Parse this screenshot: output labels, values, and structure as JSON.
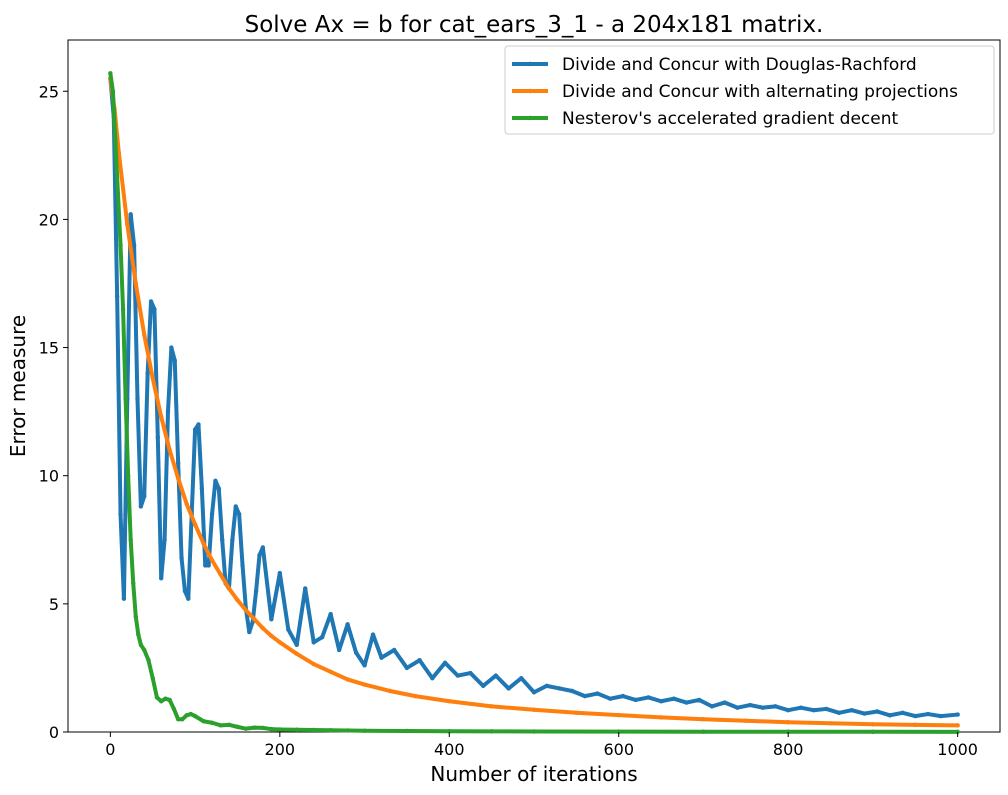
{
  "chart_data": {
    "type": "line",
    "title": "Solve Ax = b for cat_ears_3_1 - a 204x181 matrix.",
    "xlabel": "Number of iterations",
    "ylabel": "Error measure",
    "xlim": [
      -50,
      1050
    ],
    "ylim": [
      0,
      27
    ],
    "xticks": [
      0,
      200,
      400,
      600,
      800,
      1000
    ],
    "yticks": [
      0,
      5,
      10,
      15,
      20,
      25
    ],
    "grid": false,
    "legend_position": "top-right",
    "series": [
      {
        "name": "Divide and Concur with Douglas-Rachford",
        "color": "#1f77b4",
        "x": [
          0,
          4,
          8,
          12,
          16,
          20,
          24,
          28,
          32,
          36,
          40,
          44,
          48,
          52,
          56,
          60,
          64,
          68,
          72,
          76,
          80,
          84,
          88,
          92,
          96,
          100,
          104,
          108,
          112,
          116,
          120,
          124,
          128,
          132,
          136,
          140,
          144,
          148,
          152,
          156,
          160,
          164,
          168,
          172,
          176,
          180,
          190,
          200,
          210,
          220,
          230,
          240,
          250,
          260,
          270,
          280,
          290,
          300,
          310,
          320,
          335,
          350,
          365,
          380,
          395,
          410,
          425,
          440,
          455,
          470,
          485,
          500,
          515,
          530,
          545,
          560,
          575,
          590,
          605,
          620,
          635,
          650,
          665,
          680,
          695,
          710,
          725,
          740,
          755,
          770,
          785,
          800,
          815,
          830,
          845,
          860,
          875,
          890,
          905,
          920,
          935,
          950,
          965,
          980,
          1000
        ],
        "y": [
          25.5,
          24,
          17,
          8.5,
          5.2,
          13,
          20.2,
          19,
          13,
          8.8,
          9.2,
          14,
          16.8,
          16.5,
          11.5,
          6,
          7.5,
          12.5,
          15,
          14.5,
          10.5,
          6.8,
          5.5,
          5.2,
          8.5,
          11.8,
          12,
          9.5,
          6.5,
          6.5,
          8.5,
          9.8,
          9.5,
          7.5,
          5.8,
          5.6,
          7.5,
          8.8,
          8.5,
          6.5,
          4.8,
          3.9,
          4.3,
          5.5,
          6.9,
          7.2,
          4.4,
          6.2,
          4.0,
          3.4,
          5.6,
          3.5,
          3.7,
          4.6,
          3.2,
          4.2,
          3.1,
          2.6,
          3.8,
          2.9,
          3.2,
          2.5,
          2.8,
          2.1,
          2.7,
          2.2,
          2.3,
          1.8,
          2.2,
          1.7,
          2.1,
          1.55,
          1.8,
          1.7,
          1.6,
          1.4,
          1.5,
          1.3,
          1.4,
          1.25,
          1.35,
          1.2,
          1.3,
          1.15,
          1.25,
          1.0,
          1.15,
          0.95,
          1.05,
          0.95,
          1.0,
          0.85,
          0.95,
          0.85,
          0.9,
          0.75,
          0.85,
          0.72,
          0.8,
          0.65,
          0.75,
          0.62,
          0.7,
          0.62,
          0.68
        ]
      },
      {
        "name": "Divide and Concur with alternating projections",
        "color": "#ff7f0e",
        "x": [
          0,
          5,
          10,
          20,
          30,
          40,
          50,
          60,
          70,
          80,
          90,
          100,
          110,
          120,
          130,
          140,
          150,
          160,
          170,
          180,
          190,
          200,
          220,
          240,
          260,
          280,
          300,
          330,
          360,
          400,
          450,
          500,
          550,
          600,
          650,
          700,
          750,
          800,
          850,
          900,
          950,
          1000
        ],
        "y": [
          25.5,
          24.3,
          22.6,
          19.8,
          17.5,
          15.5,
          13.8,
          12.3,
          11.0,
          9.9,
          8.9,
          8.1,
          7.35,
          6.7,
          6.15,
          5.6,
          5.15,
          4.75,
          4.4,
          4.05,
          3.75,
          3.5,
          3.05,
          2.65,
          2.35,
          2.05,
          1.85,
          1.6,
          1.4,
          1.2,
          1.0,
          0.87,
          0.75,
          0.66,
          0.57,
          0.5,
          0.44,
          0.38,
          0.34,
          0.3,
          0.28,
          0.26
        ]
      },
      {
        "name": "Nesterov's accelerated gradient decent",
        "color": "#2ca02c",
        "x": [
          0,
          3,
          6,
          9,
          12,
          15,
          18,
          21,
          24,
          27,
          30,
          33,
          36,
          40,
          45,
          50,
          55,
          60,
          65,
          70,
          75,
          80,
          85,
          90,
          95,
          100,
          110,
          120,
          130,
          140,
          150,
          160,
          170,
          180,
          190,
          200,
          220,
          240,
          260,
          280,
          300,
          350,
          400,
          450,
          500,
          600,
          700,
          800,
          900,
          1000
        ],
        "y": [
          25.7,
          25.0,
          23.0,
          21.0,
          19.0,
          16.5,
          13.0,
          10.0,
          7.5,
          5.8,
          4.5,
          3.8,
          3.4,
          3.2,
          2.8,
          2.1,
          1.35,
          1.2,
          1.3,
          1.25,
          0.9,
          0.5,
          0.5,
          0.65,
          0.7,
          0.62,
          0.42,
          0.36,
          0.26,
          0.28,
          0.2,
          0.13,
          0.17,
          0.16,
          0.11,
          0.1,
          0.09,
          0.08,
          0.07,
          0.06,
          0.05,
          0.04,
          0.03,
          0.025,
          0.02,
          0.015,
          0.012,
          0.01,
          0.008,
          0.006
        ]
      }
    ]
  }
}
